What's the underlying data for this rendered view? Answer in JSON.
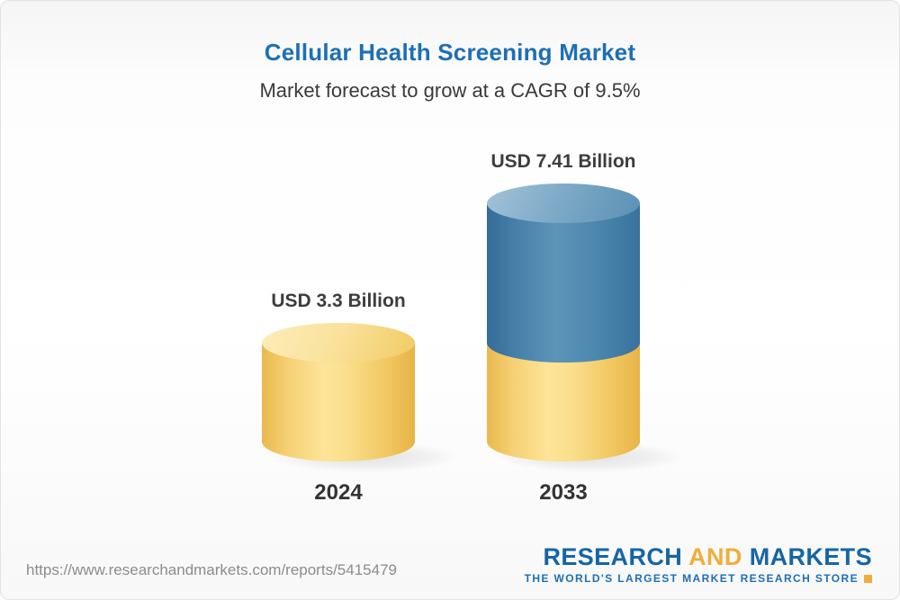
{
  "chart": {
    "title": "Cellular Health Screening Market",
    "subtitle": "Market forecast to grow at a CAGR of 9.5%",
    "bars": [
      {
        "year": "2024",
        "label": "USD 3.3 Billion",
        "value": 3.3
      },
      {
        "year": "2033",
        "label": "USD 7.41 Billion",
        "value": 7.41
      }
    ]
  },
  "chart_data": {
    "type": "bar",
    "categories": [
      "2024",
      "2033"
    ],
    "values": [
      3.3,
      7.41
    ],
    "title": "Cellular Health Screening Market",
    "subtitle": "Market forecast to grow at a CAGR of 9.5%",
    "unit": "USD Billion",
    "cagr_percent": 9.5,
    "legend": "none",
    "grid": false,
    "bar_style": "3d-cylinder",
    "colors": {
      "bar_2024": "#f6cf63",
      "bar_2033_top_segment": "#3f7aa4",
      "bar_2033_bottom_segment": "#f6cf63",
      "title_text": "#1d6fb5",
      "label_text": "#3d3d3d"
    }
  },
  "footer": {
    "url": "https://www.researchandmarkets.com/reports/5415479",
    "logo": {
      "word1": "RESEARCH",
      "word2": "AND",
      "word3": "MARKETS",
      "tagline": "THE WORLD'S LARGEST MARKET RESEARCH STORE"
    }
  }
}
